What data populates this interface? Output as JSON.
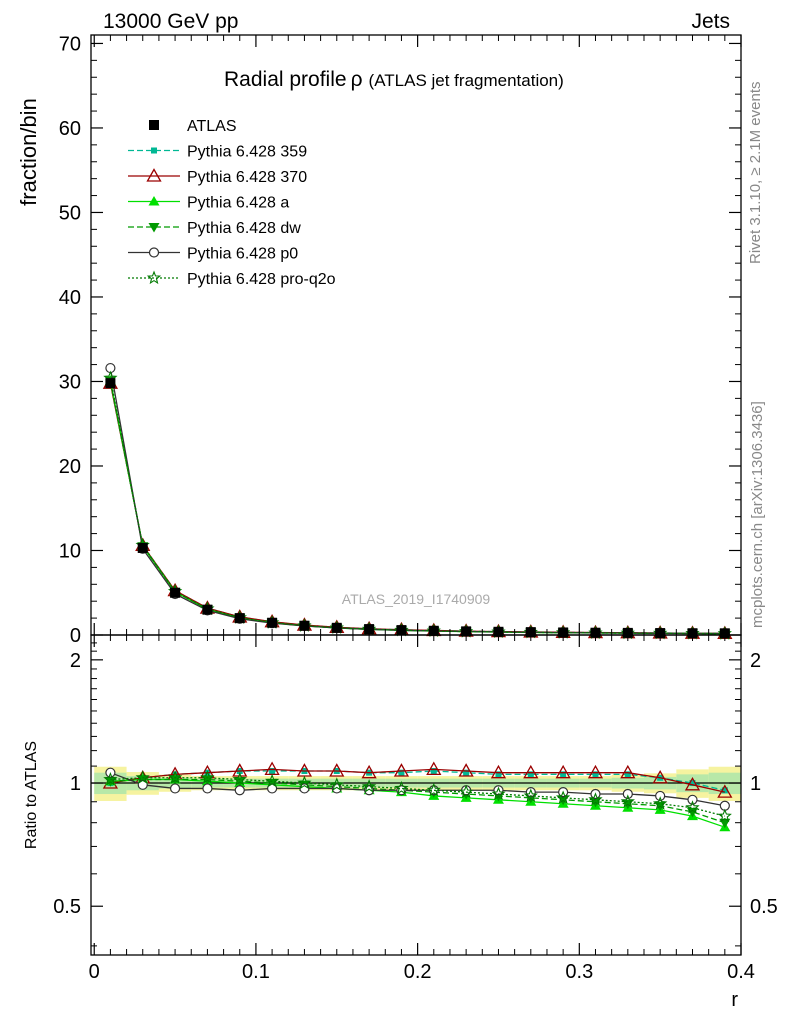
{
  "header": {
    "left": "13000 GeV pp",
    "right": "Jets",
    "side_top": "Rivet 3.1.10, ≥ 2.1M events",
    "side_bottom": "mcplots.cern.ch [arXiv:1306.3436]",
    "watermark": "ATLAS_2019_I1740909"
  },
  "chart_data": {
    "type": "line",
    "title": "Radial profile",
    "title_symbol": "ρ",
    "subtitle": "(ATLAS jet fragmentation)",
    "xlabel": "r",
    "ylabel": "fraction/bin",
    "ratio_ylabel": "Ratio to ATLAS",
    "xlim": [
      -0.002,
      0.4
    ],
    "ylim": [
      0,
      71
    ],
    "ratio_ylim": [
      0.38,
      2.3
    ],
    "x_ticks": [
      "0",
      "0.1",
      "0.2",
      "0.3",
      "0.4"
    ],
    "y_ticks": [
      "0",
      "10",
      "20",
      "30",
      "40",
      "50",
      "60",
      "70"
    ],
    "ratio_ticks": [
      "0.5",
      "1",
      "2"
    ],
    "legend_position": "top-left",
    "x": [
      0.01,
      0.03,
      0.05,
      0.07,
      0.09,
      0.11,
      0.13,
      0.15,
      0.17,
      0.19,
      0.21,
      0.23,
      0.25,
      0.27,
      0.29,
      0.31,
      0.33,
      0.35,
      0.37,
      0.39
    ],
    "data": {
      "name": "ATLAS",
      "values": [
        29.8,
        10.3,
        5.0,
        3.0,
        2.0,
        1.45,
        1.1,
        0.85,
        0.7,
        0.58,
        0.5,
        0.43,
        0.38,
        0.34,
        0.3,
        0.27,
        0.25,
        0.23,
        0.21,
        0.2
      ],
      "band_halfwidth": [
        0.06,
        0.04,
        0.03,
        0.025,
        0.025,
        0.025,
        0.025,
        0.025,
        0.025,
        0.025,
        0.025,
        0.025,
        0.025,
        0.025,
        0.025,
        0.025,
        0.03,
        0.035,
        0.05,
        0.06
      ]
    },
    "series": [
      {
        "name": "Pythia 6.428 359",
        "color": "#00b894",
        "dash": "6,3",
        "marker": "square-small",
        "ratio": [
          1.0,
          1.03,
          1.05,
          1.06,
          1.07,
          1.07,
          1.07,
          1.07,
          1.06,
          1.06,
          1.07,
          1.06,
          1.05,
          1.05,
          1.05,
          1.05,
          1.05,
          1.03,
          1.0,
          0.96
        ]
      },
      {
        "name": "Pythia 6.428 370",
        "color": "#9b0000",
        "dash": "",
        "marker": "triangle-open",
        "ratio": [
          1.0,
          1.03,
          1.05,
          1.06,
          1.07,
          1.08,
          1.07,
          1.07,
          1.06,
          1.07,
          1.08,
          1.07,
          1.06,
          1.06,
          1.06,
          1.06,
          1.06,
          1.03,
          0.99,
          0.95
        ]
      },
      {
        "name": "Pythia 6.428 a",
        "color": "#00e000",
        "dash": "",
        "marker": "triangle-up",
        "ratio": [
          1.01,
          1.02,
          1.02,
          1.01,
          1.0,
          0.99,
          0.98,
          0.97,
          0.96,
          0.95,
          0.93,
          0.92,
          0.91,
          0.9,
          0.89,
          0.88,
          0.87,
          0.86,
          0.83,
          0.78
        ]
      },
      {
        "name": "Pythia 6.428 dw",
        "color": "#009a00",
        "dash": "6,3",
        "marker": "triangle-down",
        "ratio": [
          1.01,
          1.02,
          1.02,
          1.02,
          1.01,
          1.0,
          0.99,
          0.98,
          0.97,
          0.96,
          0.95,
          0.94,
          0.93,
          0.92,
          0.91,
          0.9,
          0.89,
          0.88,
          0.85,
          0.8
        ]
      },
      {
        "name": "Pythia 6.428 p0",
        "color": "#333333",
        "dash": "",
        "marker": "circle-open",
        "ratio": [
          1.06,
          0.99,
          0.97,
          0.97,
          0.96,
          0.97,
          0.97,
          0.97,
          0.96,
          0.96,
          0.96,
          0.96,
          0.96,
          0.95,
          0.95,
          0.94,
          0.94,
          0.93,
          0.91,
          0.88
        ]
      },
      {
        "name": "Pythia 6.428 pro-q2o",
        "color": "#007a00",
        "dash": "2,2",
        "marker": "star",
        "ratio": [
          1.02,
          1.03,
          1.03,
          1.03,
          1.02,
          1.01,
          1.0,
          0.99,
          0.98,
          0.97,
          0.96,
          0.95,
          0.94,
          0.93,
          0.92,
          0.91,
          0.9,
          0.89,
          0.87,
          0.83
        ]
      }
    ]
  }
}
